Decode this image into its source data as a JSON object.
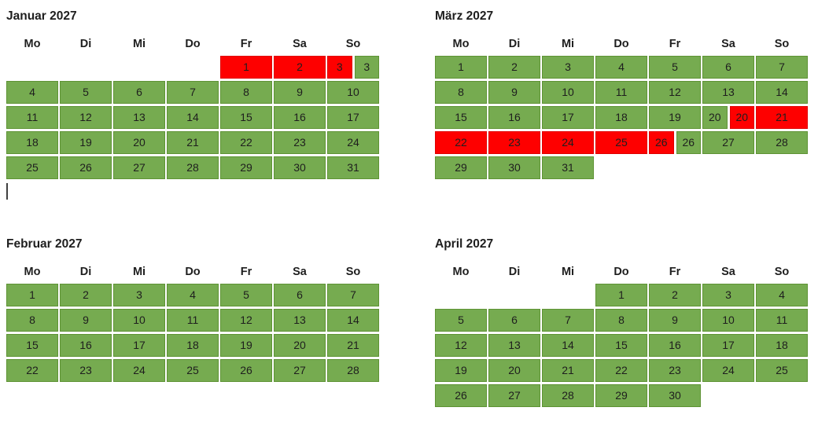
{
  "palette": {
    "green": "#76ab50",
    "green_border": "#5e9334",
    "red": "#fe0000",
    "red_border": "#df0000",
    "text": "#1e1e1e",
    "caret": "#404040",
    "background": "#ffffff"
  },
  "weekday_headers": [
    "Mo",
    "Di",
    "Mi",
    "Do",
    "Fr",
    "Sa",
    "So"
  ],
  "caret": {
    "visible": true
  },
  "months": [
    {
      "title": "Januar 2027",
      "rows": [
        [
          null,
          null,
          null,
          null,
          {
            "d": "1",
            "c": "red"
          },
          {
            "d": "2",
            "c": "red"
          },
          {
            "split": [
              {
                "d": "3",
                "c": "red"
              },
              {
                "d": "3",
                "c": "green"
              }
            ]
          }
        ],
        [
          {
            "d": "4",
            "c": "green"
          },
          {
            "d": "5",
            "c": "green"
          },
          {
            "d": "6",
            "c": "green"
          },
          {
            "d": "7",
            "c": "green"
          },
          {
            "d": "8",
            "c": "green"
          },
          {
            "d": "9",
            "c": "green"
          },
          {
            "d": "10",
            "c": "green"
          }
        ],
        [
          {
            "d": "11",
            "c": "green"
          },
          {
            "d": "12",
            "c": "green"
          },
          {
            "d": "13",
            "c": "green"
          },
          {
            "d": "14",
            "c": "green"
          },
          {
            "d": "15",
            "c": "green"
          },
          {
            "d": "16",
            "c": "green"
          },
          {
            "d": "17",
            "c": "green"
          }
        ],
        [
          {
            "d": "18",
            "c": "green"
          },
          {
            "d": "19",
            "c": "green"
          },
          {
            "d": "20",
            "c": "green"
          },
          {
            "d": "21",
            "c": "green"
          },
          {
            "d": "22",
            "c": "green"
          },
          {
            "d": "23",
            "c": "green"
          },
          {
            "d": "24",
            "c": "green"
          }
        ],
        [
          {
            "d": "25",
            "c": "green"
          },
          {
            "d": "26",
            "c": "green"
          },
          {
            "d": "27",
            "c": "green"
          },
          {
            "d": "28",
            "c": "green"
          },
          {
            "d": "29",
            "c": "green"
          },
          {
            "d": "30",
            "c": "green"
          },
          {
            "d": "31",
            "c": "green"
          }
        ]
      ]
    },
    {
      "title": "März 2027",
      "rows": [
        [
          {
            "d": "1",
            "c": "green"
          },
          {
            "d": "2",
            "c": "green"
          },
          {
            "d": "3",
            "c": "green"
          },
          {
            "d": "4",
            "c": "green"
          },
          {
            "d": "5",
            "c": "green"
          },
          {
            "d": "6",
            "c": "green"
          },
          {
            "d": "7",
            "c": "green"
          }
        ],
        [
          {
            "d": "8",
            "c": "green"
          },
          {
            "d": "9",
            "c": "green"
          },
          {
            "d": "10",
            "c": "green"
          },
          {
            "d": "11",
            "c": "green"
          },
          {
            "d": "12",
            "c": "green"
          },
          {
            "d": "13",
            "c": "green"
          },
          {
            "d": "14",
            "c": "green"
          }
        ],
        [
          {
            "d": "15",
            "c": "green"
          },
          {
            "d": "16",
            "c": "green"
          },
          {
            "d": "17",
            "c": "green"
          },
          {
            "d": "18",
            "c": "green"
          },
          {
            "d": "19",
            "c": "green"
          },
          {
            "split": [
              {
                "d": "20",
                "c": "green"
              },
              {
                "d": "20",
                "c": "red"
              }
            ]
          },
          {
            "d": "21",
            "c": "red"
          }
        ],
        [
          {
            "d": "22",
            "c": "red"
          },
          {
            "d": "23",
            "c": "red"
          },
          {
            "d": "24",
            "c": "red"
          },
          {
            "d": "25",
            "c": "red"
          },
          {
            "split": [
              {
                "d": "26",
                "c": "red"
              },
              {
                "d": "26",
                "c": "green"
              }
            ]
          },
          {
            "d": "27",
            "c": "green"
          },
          {
            "d": "28",
            "c": "green"
          }
        ],
        [
          {
            "d": "29",
            "c": "green"
          },
          {
            "d": "30",
            "c": "green"
          },
          {
            "d": "31",
            "c": "green"
          },
          null,
          null,
          null,
          null
        ]
      ]
    },
    {
      "title": "Februar 2027",
      "rows": [
        [
          {
            "d": "1",
            "c": "green"
          },
          {
            "d": "2",
            "c": "green"
          },
          {
            "d": "3",
            "c": "green"
          },
          {
            "d": "4",
            "c": "green"
          },
          {
            "d": "5",
            "c": "green"
          },
          {
            "d": "6",
            "c": "green"
          },
          {
            "d": "7",
            "c": "green"
          }
        ],
        [
          {
            "d": "8",
            "c": "green"
          },
          {
            "d": "9",
            "c": "green"
          },
          {
            "d": "10",
            "c": "green"
          },
          {
            "d": "11",
            "c": "green"
          },
          {
            "d": "12",
            "c": "green"
          },
          {
            "d": "13",
            "c": "green"
          },
          {
            "d": "14",
            "c": "green"
          }
        ],
        [
          {
            "d": "15",
            "c": "green"
          },
          {
            "d": "16",
            "c": "green"
          },
          {
            "d": "17",
            "c": "green"
          },
          {
            "d": "18",
            "c": "green"
          },
          {
            "d": "19",
            "c": "green"
          },
          {
            "d": "20",
            "c": "green"
          },
          {
            "d": "21",
            "c": "green"
          }
        ],
        [
          {
            "d": "22",
            "c": "green"
          },
          {
            "d": "23",
            "c": "green"
          },
          {
            "d": "24",
            "c": "green"
          },
          {
            "d": "25",
            "c": "green"
          },
          {
            "d": "26",
            "c": "green"
          },
          {
            "d": "27",
            "c": "green"
          },
          {
            "d": "28",
            "c": "green"
          }
        ]
      ]
    },
    {
      "title": "April 2027",
      "rows": [
        [
          null,
          null,
          null,
          {
            "d": "1",
            "c": "green"
          },
          {
            "d": "2",
            "c": "green"
          },
          {
            "d": "3",
            "c": "green"
          },
          {
            "d": "4",
            "c": "green"
          }
        ],
        [
          {
            "d": "5",
            "c": "green"
          },
          {
            "d": "6",
            "c": "green"
          },
          {
            "d": "7",
            "c": "green"
          },
          {
            "d": "8",
            "c": "green"
          },
          {
            "d": "9",
            "c": "green"
          },
          {
            "d": "10",
            "c": "green"
          },
          {
            "d": "11",
            "c": "green"
          }
        ],
        [
          {
            "d": "12",
            "c": "green"
          },
          {
            "d": "13",
            "c": "green"
          },
          {
            "d": "14",
            "c": "green"
          },
          {
            "d": "15",
            "c": "green"
          },
          {
            "d": "16",
            "c": "green"
          },
          {
            "d": "17",
            "c": "green"
          },
          {
            "d": "18",
            "c": "green"
          }
        ],
        [
          {
            "d": "19",
            "c": "green"
          },
          {
            "d": "20",
            "c": "green"
          },
          {
            "d": "21",
            "c": "green"
          },
          {
            "d": "22",
            "c": "green"
          },
          {
            "d": "23",
            "c": "green"
          },
          {
            "d": "24",
            "c": "green"
          },
          {
            "d": "25",
            "c": "green"
          }
        ],
        [
          {
            "d": "26",
            "c": "green"
          },
          {
            "d": "27",
            "c": "green"
          },
          {
            "d": "28",
            "c": "green"
          },
          {
            "d": "29",
            "c": "green"
          },
          {
            "d": "30",
            "c": "green"
          },
          null,
          null
        ]
      ]
    }
  ]
}
